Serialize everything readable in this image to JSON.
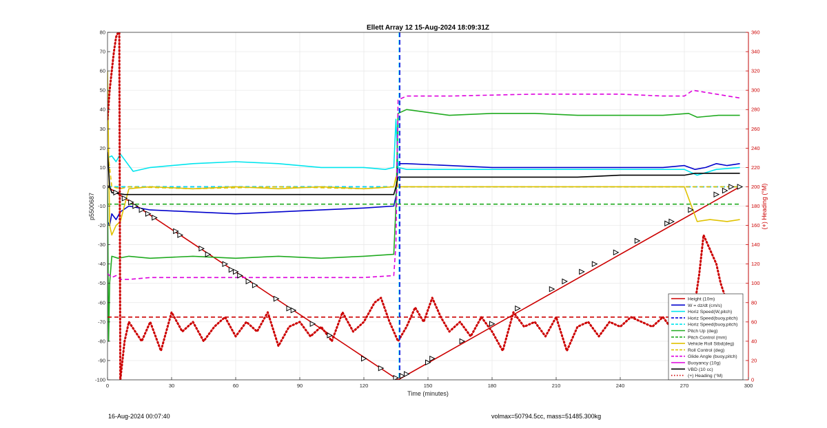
{
  "figure": {
    "footer_left": "16-Aug-2024 00:07:40",
    "footer_right": "volmax=50794.5cc, mass=51485.300kg"
  },
  "chart_data": {
    "type": "line",
    "title": "Ellett Array 12 15-Aug-2024 18:09:31Z",
    "xlabel": "Time (minutes)",
    "ylabel": "p5500687",
    "y2label": "(+) Heading (°M)",
    "xlim": [
      0,
      300
    ],
    "ylim": [
      -100,
      80
    ],
    "y2lim": [
      0,
      360
    ],
    "xticks": [
      0,
      30,
      60,
      90,
      120,
      150,
      180,
      210,
      240,
      270,
      300
    ],
    "yticks": [
      -100,
      -90,
      -80,
      -70,
      -60,
      -50,
      -40,
      -30,
      -20,
      -10,
      0,
      10,
      20,
      30,
      40,
      50,
      60,
      70,
      80
    ],
    "y2ticks": [
      0,
      20,
      40,
      60,
      80,
      100,
      120,
      140,
      160,
      180,
      200,
      220,
      240,
      260,
      280,
      300,
      320,
      340,
      360
    ],
    "grid": true,
    "legend_position": "bottom-right",
    "vertical_lines": [
      {
        "x": 136.5,
        "color": "#00e5ee",
        "style": "dashed"
      },
      {
        "x": 136.8,
        "color": "#0000dd",
        "style": "dashed"
      }
    ],
    "series": [
      {
        "name": "Height (10m)",
        "color": "#cc0000",
        "style": "solid",
        "axis": "left",
        "x": [
          0,
          136,
          296
        ],
        "y": [
          0,
          -100,
          0
        ]
      },
      {
        "name": "W = dz/dt (cm/s)",
        "color": "#0000cc",
        "style": "solid",
        "axis": "left",
        "x": [
          0,
          1,
          2,
          4,
          6,
          10,
          20,
          40,
          60,
          80,
          100,
          120,
          134,
          135,
          136,
          140,
          160,
          180,
          200,
          220,
          240,
          260,
          270,
          275,
          280,
          285,
          290,
          296
        ],
        "y": [
          -18,
          -20,
          -14,
          -17,
          -13,
          -10,
          -12,
          -13,
          -14,
          -13,
          -12,
          -11,
          -10,
          -5,
          12,
          12,
          11,
          10,
          10,
          10,
          10,
          10,
          11,
          9,
          10,
          12,
          11,
          12
        ]
      },
      {
        "name": "Horiz Speed(W,pitch)",
        "color": "#00e5ee",
        "style": "solid",
        "axis": "left",
        "x": [
          0,
          2,
          4,
          6,
          8,
          12,
          20,
          40,
          60,
          80,
          100,
          120,
          130,
          134,
          135,
          136,
          140,
          160,
          200,
          240,
          270,
          276,
          285,
          296
        ],
        "y": [
          15,
          16,
          13,
          17,
          14,
          8,
          10,
          12,
          13,
          12,
          10,
          10,
          9,
          10,
          35,
          10,
          9,
          9,
          9,
          9,
          9,
          6,
          9,
          10
        ]
      },
      {
        "name": "Horiz Speed(buoy,pitch)",
        "color": "#0000dd",
        "style": "dashed",
        "axis": "left",
        "x": [
          0,
          296
        ],
        "y": [
          0,
          0
        ]
      },
      {
        "name": "Horiz Speed(buoy,pitch)",
        "color": "#00e5ee",
        "style": "dashed",
        "axis": "left",
        "x": [
          0,
          296
        ],
        "y": [
          0,
          0
        ]
      },
      {
        "name": "Pitch Up (deg)",
        "color": "#1faa1f",
        "style": "solid",
        "axis": "left",
        "x": [
          0,
          0.5,
          1,
          2,
          5,
          10,
          20,
          40,
          60,
          80,
          100,
          120,
          134,
          135,
          136,
          140,
          160,
          180,
          200,
          220,
          240,
          260,
          272,
          276,
          286,
          296
        ],
        "y": [
          0,
          -80,
          -50,
          -36,
          -37,
          -36,
          -37,
          -36,
          -37,
          -36,
          -37,
          -36,
          -35,
          -10,
          38,
          40,
          37,
          38,
          38,
          37,
          37,
          37,
          38,
          36,
          37,
          37
        ]
      },
      {
        "name": "Pitch Control (mm)",
        "color": "#1faa1f",
        "style": "dashed",
        "axis": "left",
        "x": [
          0,
          296
        ],
        "y": [
          -9,
          -9
        ]
      },
      {
        "name": "Vehicle Roll Stbd(deg)",
        "color": "#e0c200",
        "style": "solid",
        "axis": "left",
        "x": [
          0,
          1,
          2,
          4,
          6,
          10,
          20,
          40,
          60,
          80,
          100,
          120,
          134,
          135,
          136,
          160,
          180,
          200,
          240,
          270,
          276,
          282,
          290,
          296
        ],
        "y": [
          60,
          -20,
          -25,
          -20,
          -18,
          -1,
          0,
          -1,
          0,
          -1,
          0,
          -1,
          0,
          5,
          0,
          0,
          0,
          0,
          0,
          0,
          -18,
          -17,
          -18,
          -17
        ]
      },
      {
        "name": "Roll Control (deg)",
        "color": "#e0c200",
        "style": "dashed",
        "axis": "left",
        "x": [
          0,
          2,
          6,
          10,
          40,
          80,
          120,
          134,
          136,
          180,
          240,
          276,
          296
        ],
        "y": [
          20,
          0,
          -1,
          0,
          -1,
          0,
          -1,
          0,
          0,
          0,
          0,
          0,
          0
        ]
      },
      {
        "name": "Glide Angle (buoy,pitch)",
        "color": "#dd00dd",
        "style": "dashed",
        "axis": "left",
        "x": [
          0,
          2,
          4,
          6,
          10,
          20,
          40,
          60,
          80,
          100,
          120,
          134,
          135,
          136,
          140,
          160,
          200,
          240,
          260,
          270,
          274,
          285,
          296
        ],
        "y": [
          -45,
          -47,
          -46,
          -48,
          -48,
          -47,
          -47,
          -47,
          -47,
          -47,
          -47,
          -46,
          -30,
          45,
          47,
          47,
          48,
          48,
          47,
          47,
          50,
          48,
          46
        ]
      },
      {
        "name": "Buoyancy (10g)",
        "color": "#dd00dd",
        "style": "solid",
        "axis": "left",
        "x": [],
        "y": []
      },
      {
        "name": "VBD (10 cc)",
        "color": "#000000",
        "style": "solid",
        "axis": "left",
        "x": [
          0,
          1,
          2,
          8,
          60,
          120,
          134,
          135,
          136,
          140,
          180,
          220,
          240,
          270,
          275,
          296
        ],
        "y": [
          18,
          0,
          -3,
          -4,
          -4,
          -4,
          -4,
          0,
          5,
          5,
          5,
          5,
          6,
          6,
          7,
          7
        ]
      },
      {
        "name": "(+) Heading (°M)",
        "color": "#cc0000",
        "style": "dotted",
        "axis": "right",
        "x": [
          0,
          1,
          2,
          3,
          4,
          5,
          5.5,
          6,
          7,
          8,
          10,
          13,
          16,
          20,
          25,
          30,
          35,
          40,
          45,
          50,
          55,
          60,
          65,
          70,
          75,
          80,
          85,
          90,
          95,
          100,
          105,
          110,
          115,
          120,
          125,
          128,
          132,
          136,
          140,
          144,
          148,
          152,
          156,
          160,
          165,
          170,
          175,
          180,
          185,
          190,
          195,
          200,
          205,
          210,
          215,
          220,
          225,
          230,
          235,
          240,
          245,
          250,
          255,
          260,
          265,
          270,
          273,
          275,
          277,
          279,
          281,
          283,
          285,
          287,
          290,
          293,
          296
        ],
        "y": [
          270,
          300,
          320,
          340,
          355,
          360,
          360,
          0,
          20,
          40,
          60,
          50,
          40,
          60,
          30,
          70,
          50,
          60,
          40,
          55,
          65,
          45,
          60,
          50,
          70,
          35,
          55,
          60,
          45,
          55,
          40,
          70,
          50,
          60,
          80,
          85,
          60,
          40,
          55,
          75,
          60,
          85,
          65,
          50,
          60,
          45,
          65,
          50,
          30,
          70,
          55,
          60,
          45,
          65,
          30,
          55,
          60,
          45,
          60,
          55,
          65,
          60,
          55,
          65,
          50,
          60,
          65,
          80,
          110,
          150,
          140,
          130,
          120,
          100,
          80,
          60,
          40
        ]
      },
      {
        "name": "",
        "color": "#cc0000",
        "style": "dashed",
        "axis": "right",
        "x": [
          0,
          296
        ],
        "y": [
          65,
          65
        ]
      }
    ],
    "markers": [
      {
        "color": "#000000",
        "shape": "triangle",
        "axis": "left",
        "x": [
          0,
          4,
          8,
          11,
          13,
          16,
          19,
          22,
          32,
          34,
          44,
          47,
          55,
          58,
          60,
          62,
          66,
          69,
          79,
          85,
          87,
          96,
          104,
          120,
          128,
          135,
          138,
          140,
          150,
          152,
          166,
          180,
          192,
          208,
          214,
          222,
          228,
          238,
          248,
          262,
          264,
          273,
          285,
          289,
          292,
          296
        ],
        "y": [
          0,
          -3,
          -6,
          -8,
          -10,
          -12,
          -14,
          -16,
          -23,
          -25,
          -32,
          -35,
          -40,
          -43,
          -44,
          -46,
          -49,
          -51,
          -58,
          -63,
          -64,
          -71,
          -77,
          -89,
          -94,
          -99,
          -98,
          -97,
          -91,
          -89,
          -80,
          -71,
          -63,
          -53,
          -49,
          -44,
          -40,
          -34,
          -28,
          -19,
          -18,
          -12,
          -4,
          -2,
          0,
          0
        ]
      }
    ]
  }
}
